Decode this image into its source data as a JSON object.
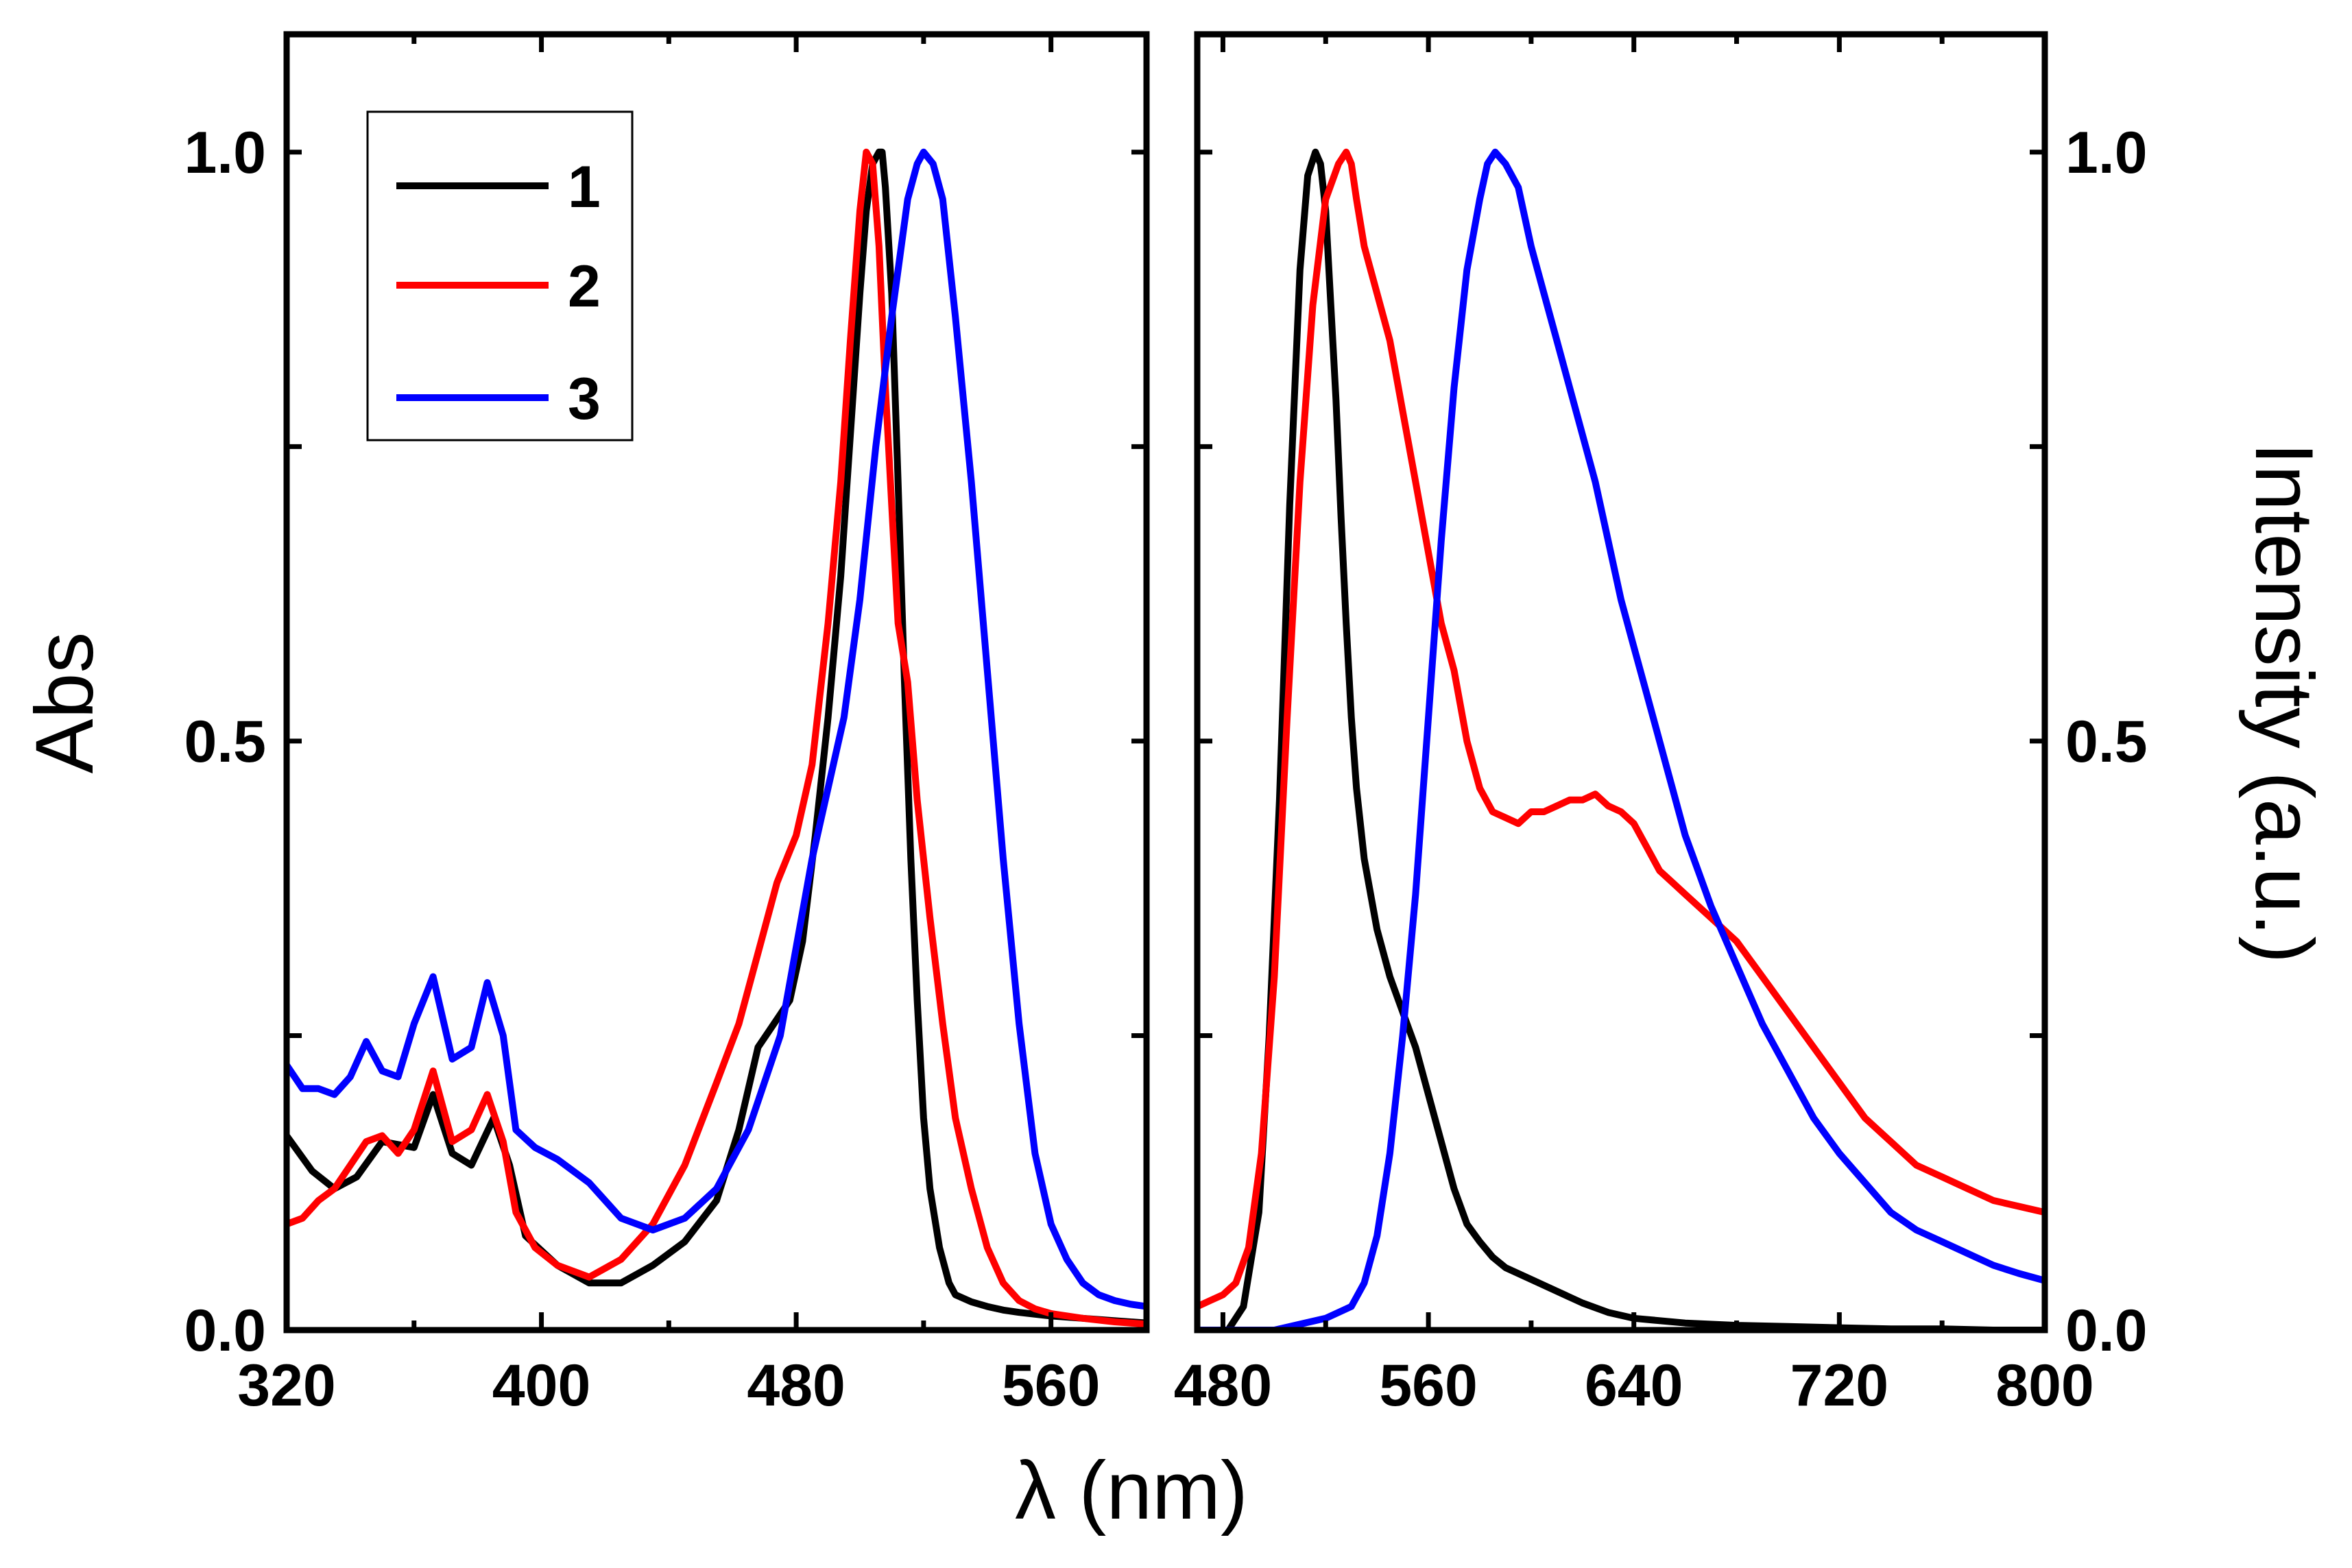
{
  "chart_data": [
    {
      "type": "line",
      "panel": "absorption",
      "ylabel": "Abs",
      "xlim": [
        320,
        590
      ],
      "ylim": [
        0,
        1.1
      ],
      "xticks": [
        320,
        400,
        480,
        560
      ],
      "yticks": [
        0.0,
        0.5,
        1.0
      ],
      "ytick_labels": [
        "0.0",
        "0.5",
        "1.0"
      ],
      "legend": {
        "placement": "top-left",
        "entries": [
          "1",
          "2",
          "3"
        ]
      },
      "series": [
        {
          "name": "1",
          "color": "#000000",
          "x": [
            320,
            328,
            335,
            342,
            350,
            360,
            366,
            372,
            378,
            385,
            390,
            395,
            405,
            415,
            425,
            435,
            445,
            455,
            462,
            468,
            473,
            478,
            482,
            486,
            490,
            494,
            497,
            500,
            502,
            504,
            506,
            507,
            508,
            510,
            512,
            514,
            516,
            518,
            520,
            522,
            525,
            528,
            530,
            535,
            540,
            545,
            550,
            560,
            570,
            580,
            590
          ],
          "y": [
            0.165,
            0.135,
            0.12,
            0.13,
            0.16,
            0.155,
            0.2,
            0.15,
            0.14,
            0.18,
            0.14,
            0.08,
            0.055,
            0.04,
            0.04,
            0.055,
            0.075,
            0.11,
            0.17,
            0.24,
            0.26,
            0.28,
            0.33,
            0.42,
            0.52,
            0.64,
            0.76,
            0.88,
            0.95,
            0.99,
            1.0,
            1.0,
            0.97,
            0.88,
            0.72,
            0.55,
            0.4,
            0.28,
            0.18,
            0.12,
            0.07,
            0.04,
            0.03,
            0.024,
            0.02,
            0.017,
            0.015,
            0.012,
            0.01,
            0.008,
            0.006
          ]
        },
        {
          "name": "2",
          "color": "#ff0000",
          "x": [
            320,
            325,
            330,
            335,
            340,
            345,
            350,
            355,
            360,
            366,
            372,
            378,
            383,
            388,
            392,
            398,
            405,
            415,
            425,
            435,
            445,
            455,
            462,
            468,
            474,
            480,
            485,
            490,
            494,
            497,
            500,
            502,
            504,
            506,
            508,
            510,
            512,
            515,
            518,
            522,
            526,
            530,
            535,
            540,
            545,
            550,
            555,
            560,
            570,
            580,
            590
          ],
          "y": [
            0.09,
            0.095,
            0.11,
            0.12,
            0.14,
            0.16,
            0.165,
            0.15,
            0.17,
            0.22,
            0.16,
            0.17,
            0.2,
            0.16,
            0.1,
            0.07,
            0.055,
            0.045,
            0.06,
            0.09,
            0.14,
            0.21,
            0.26,
            0.32,
            0.38,
            0.42,
            0.48,
            0.6,
            0.72,
            0.84,
            0.95,
            1.0,
            0.99,
            0.92,
            0.8,
            0.7,
            0.6,
            0.55,
            0.45,
            0.35,
            0.26,
            0.18,
            0.12,
            0.07,
            0.04,
            0.025,
            0.018,
            0.014,
            0.01,
            0.007,
            0.005
          ]
        },
        {
          "name": "3",
          "color": "#0000ff",
          "x": [
            320,
            325,
            330,
            335,
            340,
            345,
            350,
            355,
            360,
            366,
            372,
            378,
            383,
            388,
            392,
            398,
            405,
            415,
            425,
            435,
            445,
            455,
            465,
            475,
            485,
            495,
            500,
            505,
            510,
            515,
            518,
            520,
            523,
            526,
            530,
            535,
            540,
            545,
            550,
            555,
            560,
            565,
            570,
            575,
            580,
            585,
            590
          ],
          "y": [
            0.225,
            0.205,
            0.205,
            0.2,
            0.215,
            0.245,
            0.22,
            0.215,
            0.26,
            0.3,
            0.23,
            0.24,
            0.295,
            0.25,
            0.17,
            0.155,
            0.145,
            0.125,
            0.095,
            0.085,
            0.095,
            0.12,
            0.17,
            0.25,
            0.4,
            0.52,
            0.62,
            0.75,
            0.86,
            0.96,
            0.99,
            1.0,
            0.99,
            0.96,
            0.86,
            0.72,
            0.56,
            0.4,
            0.26,
            0.15,
            0.09,
            0.06,
            0.04,
            0.03,
            0.025,
            0.022,
            0.02
          ]
        }
      ]
    },
    {
      "type": "line",
      "panel": "emission",
      "ylabel": "Intensity (a.u.)",
      "xlim": [
        470,
        800
      ],
      "ylim": [
        0,
        1.1
      ],
      "xticks": [
        480,
        560,
        640,
        720,
        800
      ],
      "yticks": [
        0.0,
        0.5,
        1.0
      ],
      "ytick_labels": [
        "0.0",
        "0.5",
        "1.0"
      ],
      "series": [
        {
          "name": "1",
          "color": "#000000",
          "x": [
            470,
            482,
            488,
            494,
            498,
            502,
            506,
            510,
            513,
            516,
            518,
            520,
            522,
            524,
            526,
            528,
            530,
            532,
            535,
            540,
            545,
            550,
            555,
            560,
            565,
            570,
            575,
            580,
            585,
            590,
            600,
            610,
            620,
            630,
            640,
            660,
            680,
            700,
            720,
            740,
            760,
            780,
            800
          ],
          "y": [
            0.0,
            0.0,
            0.02,
            0.1,
            0.25,
            0.45,
            0.7,
            0.9,
            0.98,
            1.0,
            0.99,
            0.95,
            0.87,
            0.79,
            0.69,
            0.6,
            0.52,
            0.46,
            0.4,
            0.34,
            0.3,
            0.27,
            0.24,
            0.2,
            0.16,
            0.12,
            0.09,
            0.075,
            0.062,
            0.053,
            0.043,
            0.033,
            0.023,
            0.015,
            0.01,
            0.006,
            0.004,
            0.003,
            0.002,
            0.001,
            0.001,
            0.0,
            0.0
          ]
        },
        {
          "name": "2",
          "color": "#ff0000",
          "x": [
            470,
            475,
            480,
            485,
            490,
            495,
            500,
            505,
            510,
            515,
            520,
            525,
            528,
            530,
            532,
            535,
            540,
            545,
            550,
            555,
            560,
            565,
            570,
            575,
            580,
            585,
            590,
            595,
            600,
            605,
            610,
            615,
            620,
            625,
            630,
            635,
            640,
            645,
            650,
            655,
            660,
            670,
            680,
            690,
            700,
            710,
            720,
            730,
            740,
            750,
            760,
            770,
            780,
            790,
            800
          ],
          "y": [
            0.02,
            0.025,
            0.03,
            0.04,
            0.07,
            0.15,
            0.3,
            0.52,
            0.72,
            0.87,
            0.96,
            0.99,
            1.0,
            0.99,
            0.96,
            0.92,
            0.88,
            0.84,
            0.78,
            0.72,
            0.66,
            0.6,
            0.56,
            0.5,
            0.46,
            0.44,
            0.435,
            0.43,
            0.44,
            0.44,
            0.445,
            0.45,
            0.45,
            0.455,
            0.445,
            0.44,
            0.43,
            0.41,
            0.39,
            0.38,
            0.37,
            0.35,
            0.33,
            0.3,
            0.27,
            0.24,
            0.21,
            0.18,
            0.16,
            0.14,
            0.13,
            0.12,
            0.11,
            0.105,
            0.1
          ]
        },
        {
          "name": "3",
          "color": "#0000ff",
          "x": [
            470,
            490,
            500,
            510,
            520,
            530,
            535,
            540,
            545,
            550,
            555,
            560,
            565,
            570,
            575,
            580,
            583,
            586,
            590,
            595,
            600,
            605,
            610,
            615,
            620,
            625,
            630,
            635,
            640,
            645,
            650,
            655,
            660,
            665,
            670,
            680,
            690,
            700,
            710,
            720,
            730,
            740,
            750,
            760,
            770,
            780,
            790,
            800
          ],
          "y": [
            0.0,
            0.0,
            0.0,
            0.005,
            0.01,
            0.02,
            0.04,
            0.08,
            0.15,
            0.25,
            0.37,
            0.52,
            0.67,
            0.8,
            0.9,
            0.96,
            0.99,
            1.0,
            0.99,
            0.97,
            0.92,
            0.88,
            0.84,
            0.8,
            0.76,
            0.72,
            0.67,
            0.62,
            0.58,
            0.54,
            0.5,
            0.46,
            0.42,
            0.39,
            0.36,
            0.31,
            0.26,
            0.22,
            0.18,
            0.15,
            0.125,
            0.1,
            0.085,
            0.075,
            0.065,
            0.055,
            0.048,
            0.042
          ]
        }
      ]
    }
  ],
  "shared": {
    "xlabel": "λ (nm)"
  }
}
